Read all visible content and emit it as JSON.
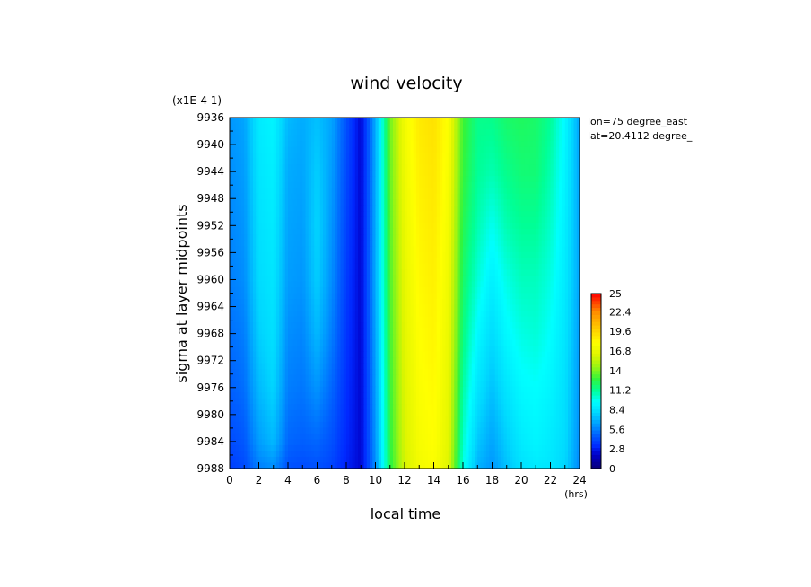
{
  "chart_data": {
    "type": "heatmap",
    "title": "wind velocity",
    "xlabel": "local time",
    "xunits": "(hrs)",
    "ylabel": "sigma at layer midpoints",
    "yscale_note": "(x1E-4 1)",
    "annotations": [
      "lon=75 degree_east",
      "lat=20.4112 degree_"
    ],
    "xlim": [
      0,
      24
    ],
    "ylim": [
      9936,
      9988
    ],
    "x_ticks": [
      "0",
      "2",
      "4",
      "6",
      "8",
      "10",
      "12",
      "14",
      "16",
      "18",
      "20",
      "22",
      "24"
    ],
    "y_ticks": [
      "9936",
      "9940",
      "9944",
      "9948",
      "9952",
      "9956",
      "9960",
      "9964",
      "9968",
      "9972",
      "9976",
      "9980",
      "9984",
      "9988"
    ],
    "colorbar": {
      "range": [
        0,
        25
      ],
      "tick_labels": [
        "25",
        "22.4",
        "19.6",
        "16.8",
        "14",
        "11.2",
        "8.4",
        "5.6",
        "2.8",
        "0"
      ]
    },
    "x": [
      0,
      1,
      2,
      3,
      4,
      5,
      6,
      7,
      8,
      9,
      10,
      11,
      12,
      13,
      14,
      15,
      16,
      17,
      18,
      19,
      20,
      21,
      22,
      23,
      24
    ],
    "y": [
      9936,
      9944,
      9952,
      9960,
      9968,
      9976,
      9984,
      9988
    ],
    "z": [
      [
        6.2,
        6.6,
        8.8,
        9.2,
        7.2,
        6.8,
        7.4,
        6.6,
        4.4,
        2.2,
        6.8,
        13.8,
        17.4,
        18.8,
        19.2,
        17.8,
        13.0,
        11.4,
        11.4,
        12.0,
        12.2,
        12.0,
        11.2,
        9.4,
        6.6
      ],
      [
        6.0,
        6.4,
        8.6,
        9.0,
        6.8,
        6.6,
        7.8,
        6.4,
        4.2,
        2.2,
        6.8,
        13.6,
        17.2,
        18.6,
        19.0,
        17.6,
        12.8,
        11.2,
        10.8,
        11.4,
        11.8,
        11.8,
        10.8,
        9.2,
        6.6
      ],
      [
        5.8,
        6.2,
        8.4,
        8.8,
        6.6,
        6.4,
        8.0,
        6.2,
        4.0,
        2.2,
        6.8,
        13.4,
        17.0,
        18.4,
        18.8,
        17.4,
        12.4,
        10.8,
        9.8,
        10.8,
        11.2,
        11.2,
        10.4,
        9.0,
        6.6
      ],
      [
        5.6,
        6.0,
        8.2,
        8.6,
        6.4,
        6.2,
        7.8,
        6.0,
        3.8,
        2.2,
        6.8,
        13.2,
        16.8,
        18.2,
        18.6,
        17.2,
        12.0,
        10.2,
        9.0,
        10.0,
        10.6,
        10.6,
        10.0,
        8.8,
        6.6
      ],
      [
        5.2,
        5.6,
        7.8,
        8.4,
        6.0,
        5.8,
        7.2,
        5.6,
        3.6,
        2.2,
        6.6,
        13.0,
        16.6,
        18.0,
        18.4,
        17.0,
        11.6,
        9.4,
        8.2,
        9.4,
        10.0,
        10.2,
        9.6,
        8.6,
        6.4
      ],
      [
        4.8,
        5.2,
        7.2,
        8.0,
        5.6,
        5.4,
        6.2,
        5.0,
        3.4,
        2.2,
        6.4,
        12.8,
        16.4,
        17.8,
        18.2,
        16.8,
        11.0,
        8.6,
        7.4,
        8.6,
        9.4,
        9.6,
        9.2,
        8.4,
        6.2
      ],
      [
        4.2,
        4.6,
        6.4,
        7.2,
        5.0,
        4.8,
        5.0,
        4.4,
        3.2,
        2.2,
        6.2,
        12.6,
        16.2,
        17.6,
        18.0,
        16.6,
        10.4,
        7.6,
        6.6,
        7.8,
        8.8,
        9.2,
        8.8,
        8.2,
        6.0
      ],
      [
        3.8,
        4.2,
        5.6,
        6.0,
        4.4,
        4.2,
        4.4,
        4.0,
        3.0,
        2.2,
        6.0,
        12.4,
        16.0,
        17.4,
        17.8,
        16.4,
        10.0,
        7.0,
        6.2,
        7.4,
        8.4,
        8.8,
        8.6,
        8.0,
        5.8
      ]
    ]
  }
}
